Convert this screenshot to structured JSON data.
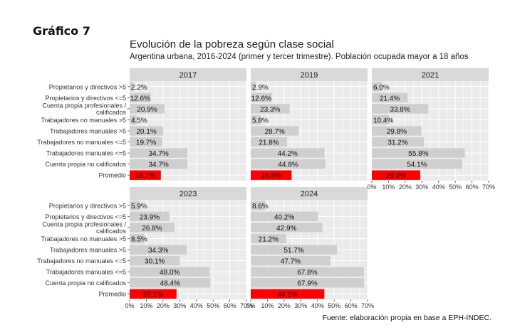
{
  "figure_label": "Gráfico 7",
  "source": "Fuente: elaboración propia en base a EPH-INDEC.",
  "colors": {
    "bar": "#cfcfcf",
    "highlight": "#ff0000",
    "panel_bg": "#ebebeb",
    "strip_bg": "#d9d9d9",
    "grid": "#ffffff"
  },
  "chart_data": {
    "type": "bar",
    "orientation": "horizontal",
    "title": "Evolución de la pobreza según clase social",
    "subtitle": "Argentina urbana, 2016-2024 (primer y tercer trimestre). Población ocupada mayor a 18 años",
    "categories": [
      "Propietarios y directivos >5",
      "Propietarios y directivos <=5",
      "Cuenta propia profesionales / calificados",
      "Trabajadores no manuales >5",
      "Trabajadores manuales >5",
      "Trabajadores no manuales <=5",
      "Trabajadores manuales <=5",
      "Cuenta propia no calificados",
      "Promedio"
    ],
    "highlight_category": "Promedio",
    "xlim": [
      0,
      70
    ],
    "xticks": [
      "0%",
      "10%",
      "20%",
      "30%",
      "40%",
      "50%",
      "60%",
      "70%"
    ],
    "panels": [
      {
        "name": "2017",
        "values": [
          2.2,
          12.6,
          20.9,
          4.5,
          20.1,
          19.7,
          34.7,
          34.7,
          18.7
        ],
        "labels": [
          "2.2%",
          "12.6%",
          "20.9%",
          "4.5%",
          "20.1%",
          "19.7%",
          "34.7%",
          "34.7%",
          "18.7%"
        ]
      },
      {
        "name": "2019",
        "values": [
          2.9,
          12.6,
          23.3,
          5.8,
          28.7,
          21.8,
          44.2,
          44.8,
          24.5
        ],
        "labels": [
          "2.9%",
          "12.6%",
          "23.3%",
          "5.8%",
          "28.7%",
          "21.8%",
          "44.2%",
          "44.8%",
          "24.5%"
        ]
      },
      {
        "name": "2021",
        "values": [
          6.0,
          21.4,
          33.8,
          10.4,
          29.8,
          31.2,
          55.8,
          54.1,
          29.0
        ],
        "labels": [
          "6.0%",
          "21.4%",
          "33.8%",
          "10.4%",
          "29.8%",
          "31.2%",
          "55.8%",
          "54.1%",
          "29.0%"
        ]
      },
      {
        "name": "2023",
        "values": [
          5.9,
          23.9,
          26.8,
          8.5,
          34.3,
          30.1,
          48.0,
          48.4,
          28.1
        ],
        "labels": [
          "5.9%",
          "23.9%",
          "26.8%",
          "8.5%",
          "34.3%",
          "30.1%",
          "48.0%",
          "48.4%",
          "28.1%"
        ]
      },
      {
        "name": "2024",
        "values": [
          8.6,
          40.2,
          42.9,
          21.2,
          51.7,
          47.7,
          67.8,
          67.9,
          44.1
        ],
        "labels": [
          "8.6%",
          "40.2%",
          "42.9%",
          "21.2%",
          "51.7%",
          "47.7%",
          "67.8%",
          "67.9%",
          "44.1%"
        ]
      }
    ],
    "grid": true,
    "legend": "none"
  }
}
